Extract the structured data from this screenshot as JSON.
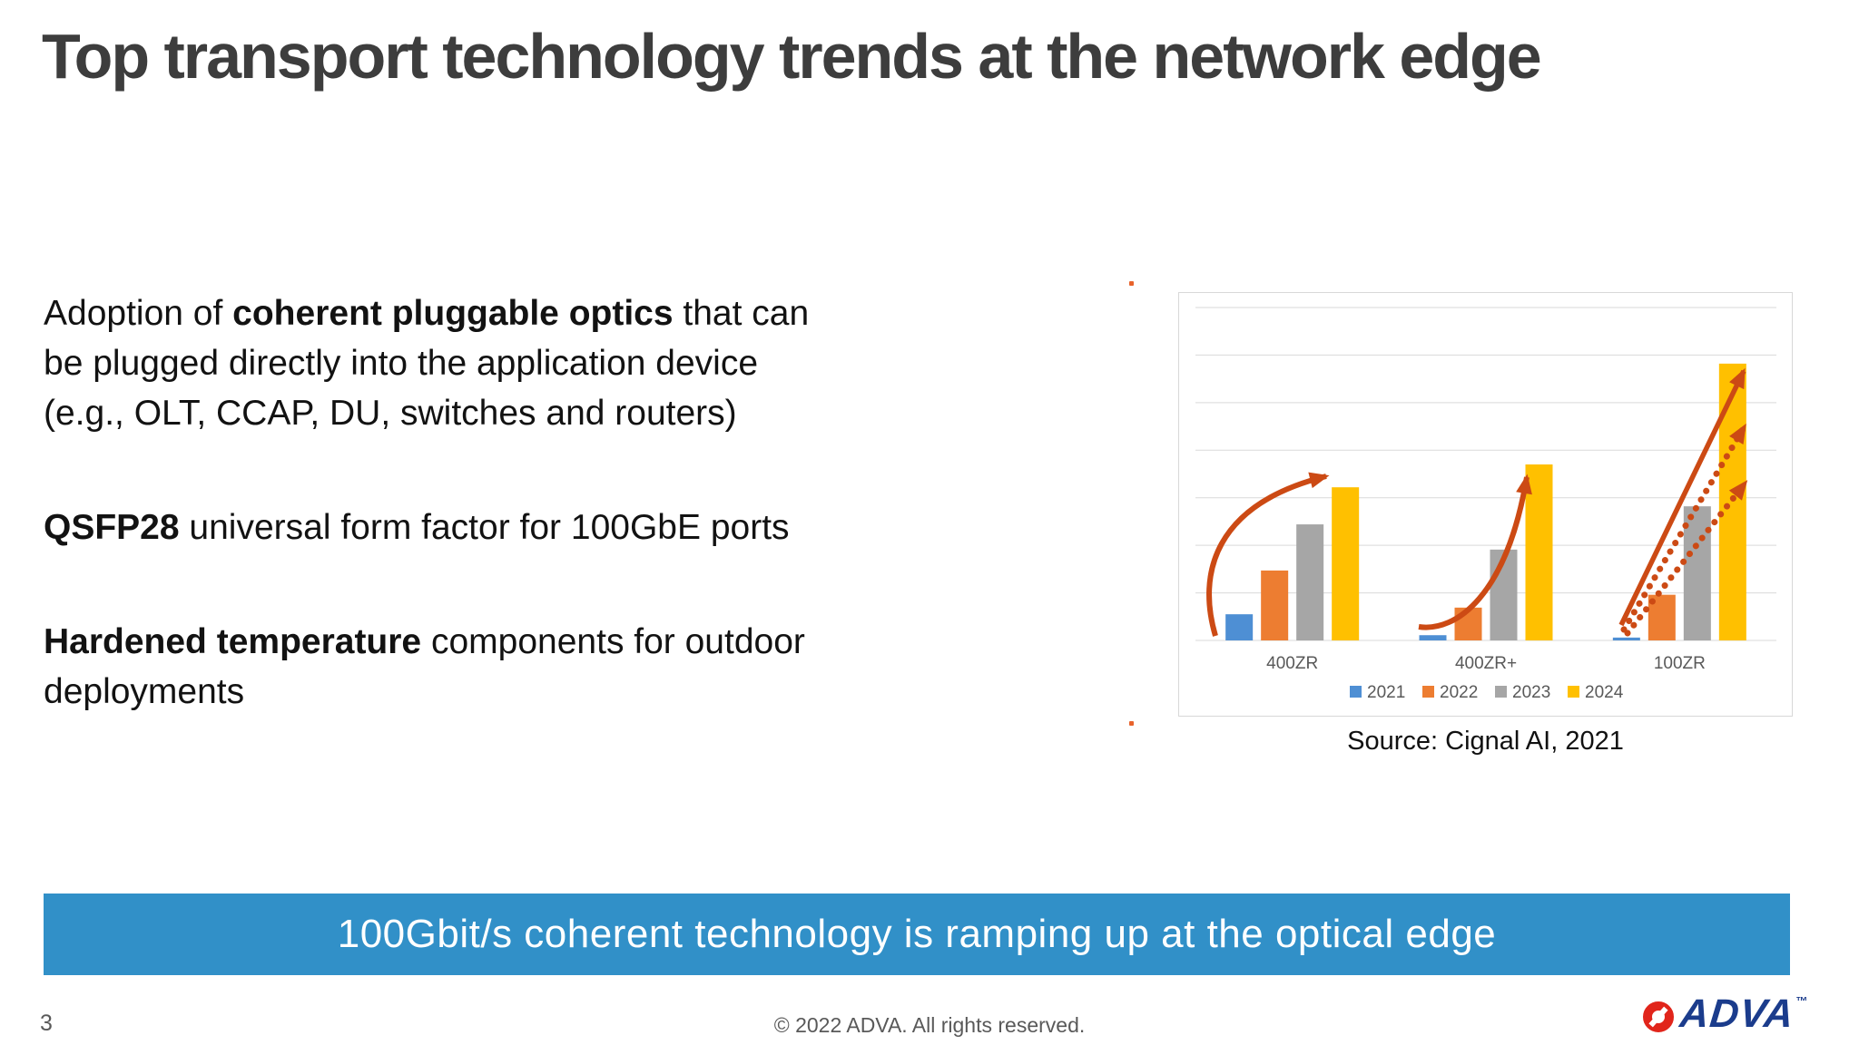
{
  "slide": {
    "title": {
      "text": "Top transport technology trends at the network edge",
      "color": "#3D3D3D"
    },
    "bullets": [
      {
        "lines": [
          {
            "parts": [
              {
                "text": "Adoption of ",
                "bold": false
              },
              {
                "text": "coherent pluggable optics",
                "bold": true
              },
              {
                "text": " that can",
                "bold": false
              }
            ]
          },
          {
            "parts": [
              {
                "text": "be plugged directly into the application device",
                "bold": false
              }
            ]
          },
          {
            "parts": [
              {
                "text": "(e.g., OLT, CCAP, DU, switches and routers)",
                "bold": false
              }
            ]
          }
        ]
      },
      {
        "lines": [
          {
            "parts": [
              {
                "text": "QSFP28",
                "bold": true
              },
              {
                "text": " universal form factor for 100GbE ports",
                "bold": false
              }
            ]
          }
        ]
      },
      {
        "lines": [
          {
            "parts": [
              {
                "text": "Hardened temperature",
                "bold": true
              },
              {
                "text": " components for outdoor",
                "bold": false
              }
            ]
          },
          {
            "parts": [
              {
                "text": "deployments",
                "bold": false
              }
            ]
          }
        ]
      }
    ],
    "chart_source": "Source: Cignal AI, 2021",
    "banner": {
      "text": "100Gbit/s coherent technology is ramping up at the optical edge",
      "bg_color": "#3190C8",
      "text_color": "#FFFFFF"
    },
    "footer": {
      "page_number": "3",
      "copyright": "© 2022 ADVA. All rights reserved.",
      "text_color": "#595959"
    },
    "logo": {
      "brand": "ADVA",
      "trademark": "™",
      "icon": "adva-ring-icon",
      "text_color": "#1B3C8C",
      "icon_color": "#E1251B"
    },
    "stray_marks_color": "#E8632C"
  },
  "chart_data": {
    "type": "bar",
    "title": "",
    "categories": [
      "400ZR",
      "400ZR+",
      "100ZR"
    ],
    "series": [
      {
        "name": "2021",
        "color": "#4E8FD4",
        "values": [
          0.55,
          0.11,
          0.06
        ]
      },
      {
        "name": "2022",
        "color": "#ED7D31",
        "values": [
          1.47,
          0.69,
          0.96
        ]
      },
      {
        "name": "2023",
        "color": "#A6A6A6",
        "values": [
          2.44,
          1.91,
          2.82
        ]
      },
      {
        "name": "2024",
        "color": "#FFC000",
        "values": [
          3.22,
          3.7,
          5.82
        ]
      }
    ],
    "ylim": [
      0,
      7
    ],
    "y_axis_labels_visible": false,
    "values_note": "values estimated in gridline units; chart shows no numeric axis labels",
    "grid": true,
    "gridline_color": "#D9D9D9",
    "plot_border_color": "#D8D8D8",
    "label_color": "#595959",
    "legend_position": "bottom",
    "annotations": {
      "arrow_color": "#CC4A14",
      "description": "orange growth arrows: curved arrow over 400ZR, curved arrow over 400ZR+, one solid and two dotted straight arrows over 100ZR"
    },
    "source": "Source: Cignal AI, 2021"
  }
}
